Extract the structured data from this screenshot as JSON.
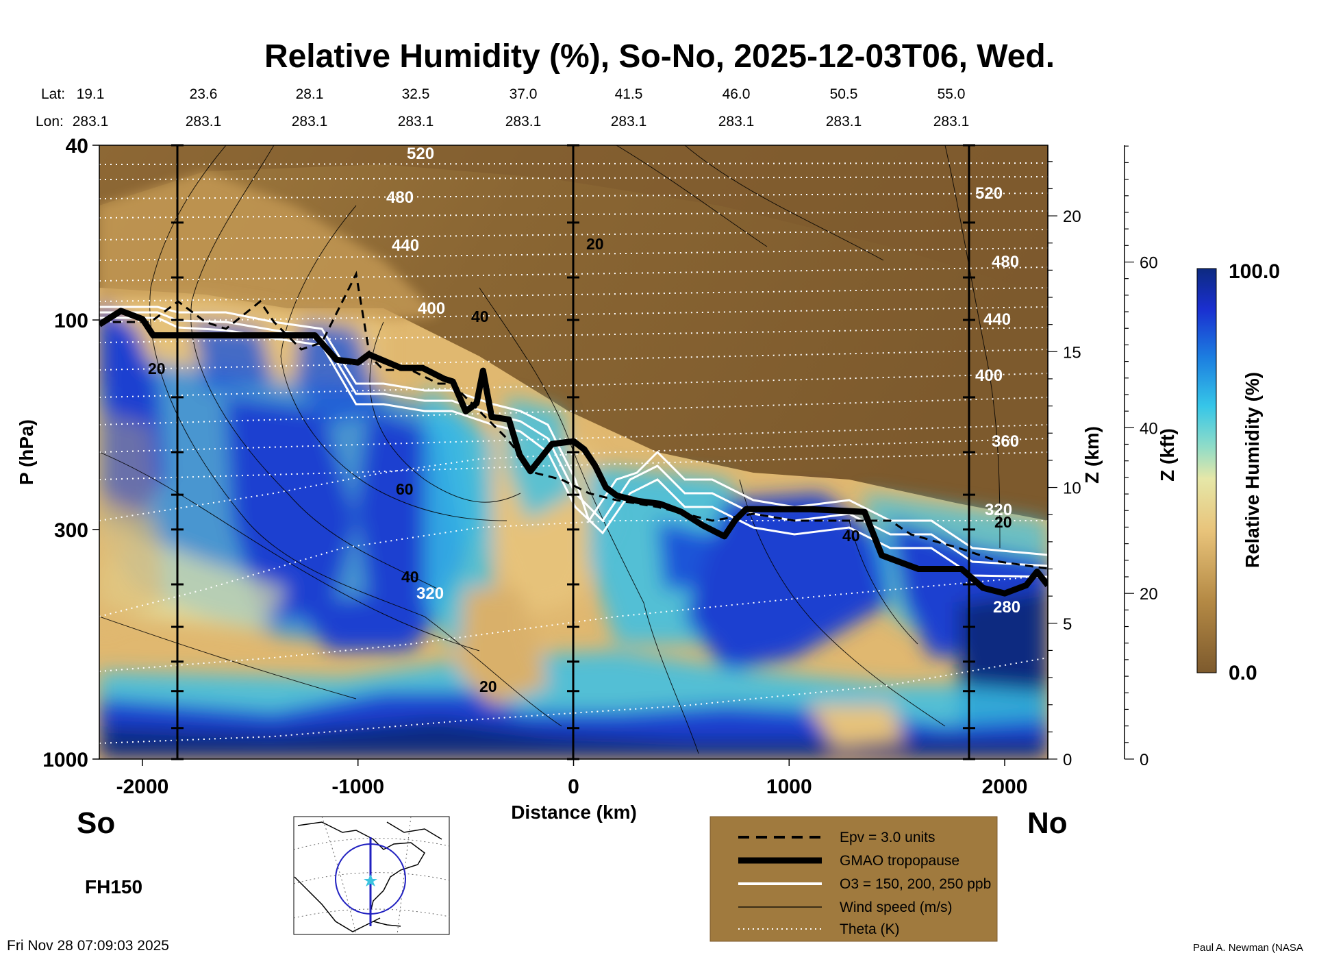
{
  "chart_data": {
    "type": "heatmap",
    "title": "Relative Humidity (%), So-No, 2025-12-03T06, Wed.",
    "xlabel": "Distance (km)",
    "ylabel": "P (hPa)",
    "xlim": [
      -2200,
      2200
    ],
    "ylim": [
      1000,
      40
    ],
    "x_ticks": [
      "-2000",
      "-1000",
      "0",
      "1000",
      "2000"
    ],
    "y_ticks": [
      "40",
      "100",
      "300",
      "1000"
    ],
    "z_km_label": "Z (km)",
    "z_km_ticks": [
      "0",
      "5",
      "10",
      "15",
      "20"
    ],
    "z_kft_label": "Z (kft)",
    "z_kft_ticks": [
      "0",
      "20",
      "40",
      "60"
    ],
    "lat_label": "Lat:",
    "lon_label": "Lon:",
    "lat_values": [
      "19.1",
      "23.6",
      "28.1",
      "32.5",
      "37.0",
      "41.5",
      "46.0",
      "50.5",
      "55.0"
    ],
    "lon_values": [
      "283.1",
      "283.1",
      "283.1",
      "283.1",
      "283.1",
      "283.1",
      "283.1",
      "283.1",
      "283.1"
    ],
    "south_label": "So",
    "north_label": "No",
    "colorbar": {
      "label": "Relative Humidity (%)",
      "min_label": "0.0",
      "max_label": "100.0",
      "range": [
        0,
        100
      ]
    },
    "theta_labels": [
      "520",
      "480",
      "440",
      "400",
      "360",
      "320",
      "280"
    ],
    "wind_labels": [
      "20",
      "40",
      "60"
    ],
    "tropopause_km": [
      [
        -2200,
        16.0
      ],
      [
        -2100,
        16.5
      ],
      [
        -2000,
        16.2
      ],
      [
        -1950,
        15.6
      ],
      [
        -1200,
        15.6
      ],
      [
        -1100,
        14.7
      ],
      [
        -1000,
        14.6
      ],
      [
        -950,
        14.9
      ],
      [
        -800,
        14.4
      ],
      [
        -700,
        14.4
      ],
      [
        -600,
        14.0
      ],
      [
        -560,
        13.9
      ],
      [
        -500,
        12.8
      ],
      [
        -450,
        13.1
      ],
      [
        -420,
        14.3
      ],
      [
        -380,
        12.6
      ],
      [
        -300,
        12.5
      ],
      [
        -250,
        11.2
      ],
      [
        -200,
        10.6
      ],
      [
        -100,
        11.6
      ],
      [
        0,
        11.7
      ],
      [
        50,
        11.4
      ],
      [
        100,
        10.8
      ],
      [
        150,
        10.0
      ],
      [
        200,
        9.7
      ],
      [
        300,
        9.5
      ],
      [
        400,
        9.4
      ],
      [
        500,
        9.1
      ],
      [
        600,
        8.6
      ],
      [
        700,
        8.2
      ],
      [
        750,
        8.8
      ],
      [
        800,
        9.2
      ],
      [
        1000,
        9.2
      ],
      [
        1100,
        9.2
      ],
      [
        1350,
        9.1
      ],
      [
        1430,
        7.5
      ],
      [
        1600,
        7.0
      ],
      [
        1800,
        7.0
      ],
      [
        1900,
        6.3
      ],
      [
        2000,
        6.1
      ],
      [
        2100,
        6.4
      ],
      [
        2150,
        6.9
      ],
      [
        2200,
        6.4
      ]
    ],
    "legend": [
      {
        "label": "Epv = 3.0 units",
        "style": "dashed"
      },
      {
        "label": "GMAO tropopause",
        "style": "thick"
      },
      {
        "label": "O3 = 150, 200, 250 ppb",
        "style": "white"
      },
      {
        "label": "Wind speed (m/s)",
        "style": "thin"
      },
      {
        "label": "Theta (K)",
        "style": "dotted"
      }
    ]
  },
  "forecast_hour": "FH150",
  "timestamp": "Fri Nov 28 07:09:03 2025",
  "credit": "Paul A. Newman (NASA",
  "colors": {
    "dry": "#7d5a2d",
    "mid": "#e0b870",
    "moist_light": "#3cc4e0",
    "moist": "#1438c0",
    "saturated": "#0d2a80"
  }
}
